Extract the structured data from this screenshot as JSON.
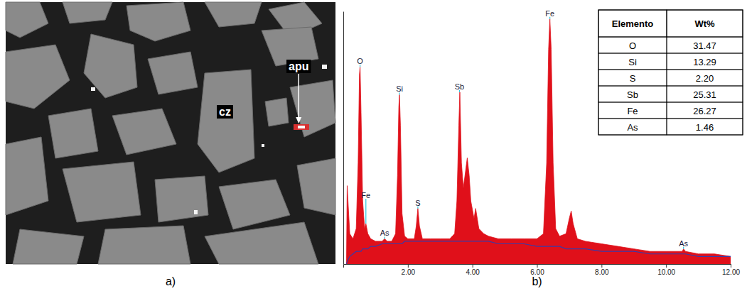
{
  "figure": {
    "panels": [
      {
        "label": "a)",
        "annotations": [
          {
            "text": "cz"
          },
          {
            "text": "apu"
          }
        ]
      },
      {
        "label": "b)"
      }
    ]
  },
  "table": {
    "header": [
      "Elemento",
      "Wt%"
    ],
    "rows": [
      [
        "O",
        "31.47"
      ],
      [
        "Si",
        "13.29"
      ],
      [
        "S",
        "2.20"
      ],
      [
        "Sb",
        "25.31"
      ],
      [
        "Fe",
        "26.27"
      ],
      [
        "As",
        "1.46"
      ]
    ]
  },
  "chart_data": {
    "type": "area",
    "x": [
      0.1,
      0.12,
      0.2,
      0.3,
      0.4,
      0.46,
      0.5,
      0.52,
      0.55,
      0.6,
      0.66,
      0.7,
      0.76,
      0.85,
      1.0,
      1.2,
      1.28,
      1.36,
      1.5,
      1.62,
      1.68,
      1.72,
      1.74,
      1.77,
      1.82,
      1.9,
      2.0,
      2.2,
      2.26,
      2.31,
      2.36,
      2.45,
      2.7,
      3.0,
      3.3,
      3.45,
      3.52,
      3.58,
      3.61,
      3.66,
      3.72,
      3.8,
      3.84,
      3.9,
      3.95,
      4.05,
      4.1,
      4.2,
      4.35,
      4.5,
      4.8,
      5.2,
      5.6,
      6.0,
      6.2,
      6.3,
      6.36,
      6.4,
      6.44,
      6.5,
      6.58,
      6.7,
      6.9,
      7.0,
      7.06,
      7.12,
      7.25,
      7.5,
      8.0,
      8.5,
      9.0,
      9.5,
      10.0,
      10.5,
      10.54,
      10.6,
      11.0,
      11.5,
      12.0
    ],
    "series": [
      {
        "type": "area",
        "color": "#e0101a",
        "values": [
          2,
          31,
          12,
          10,
          14,
          40,
          75,
          78,
          60,
          25,
          14,
          16,
          12,
          10,
          9,
          9,
          10,
          9,
          9,
          12,
          35,
          62,
          67,
          55,
          20,
          11,
          10,
          10,
          15,
          22,
          15,
          10,
          10,
          10,
          10,
          12,
          25,
          55,
          68,
          40,
          30,
          38,
          42,
          35,
          25,
          18,
          22,
          14,
          12,
          11,
          10,
          10,
          10,
          10,
          12,
          40,
          85,
          97,
          85,
          40,
          14,
          11,
          12,
          18,
          21,
          16,
          10,
          9,
          8,
          7,
          6,
          5,
          5,
          5,
          6,
          5,
          4,
          4,
          3
        ]
      },
      {
        "type": "line",
        "color": "#3a3aa8",
        "values": [
          0,
          1,
          3,
          4,
          5,
          5,
          5,
          5,
          5,
          6,
          6,
          6,
          6,
          7,
          7,
          8,
          8,
          8,
          8,
          8,
          8,
          8,
          8,
          8,
          8,
          9,
          9,
          9,
          9,
          9,
          9,
          9,
          9,
          9,
          9,
          9,
          9,
          9,
          9,
          9,
          9,
          9,
          9,
          9,
          9,
          9,
          9,
          9,
          9,
          9,
          8,
          8,
          8,
          7,
          7,
          7,
          7,
          7,
          7,
          7,
          7,
          7,
          6,
          6,
          6,
          6,
          6,
          6,
          5,
          5,
          5,
          4,
          4,
          4,
          4,
          4,
          3,
          3,
          3
        ]
      }
    ],
    "xlim": [
      0,
      12
    ],
    "xticks": [
      {
        "value": 2,
        "label": "2.00"
      },
      {
        "value": 4,
        "label": "4.00"
      },
      {
        "value": 6,
        "label": "6.00"
      },
      {
        "value": 8,
        "label": "8.00"
      },
      {
        "value": 10,
        "label": "10.00"
      },
      {
        "value": 12,
        "label": "12.00"
      }
    ],
    "ylim": [
      0,
      100
    ],
    "tick_labels": "x",
    "annotations": [
      {
        "text": "O",
        "x": 0.52
      },
      {
        "text": "Fe",
        "x": 0.7
      },
      {
        "text": "As",
        "x": 1.28
      },
      {
        "text": "Si",
        "x": 1.74
      },
      {
        "text": "S",
        "x": 2.31
      },
      {
        "text": "Sb",
        "x": 3.6
      },
      {
        "text": "Fe",
        "x": 6.4
      },
      {
        "text": "As",
        "x": 10.54
      }
    ]
  }
}
